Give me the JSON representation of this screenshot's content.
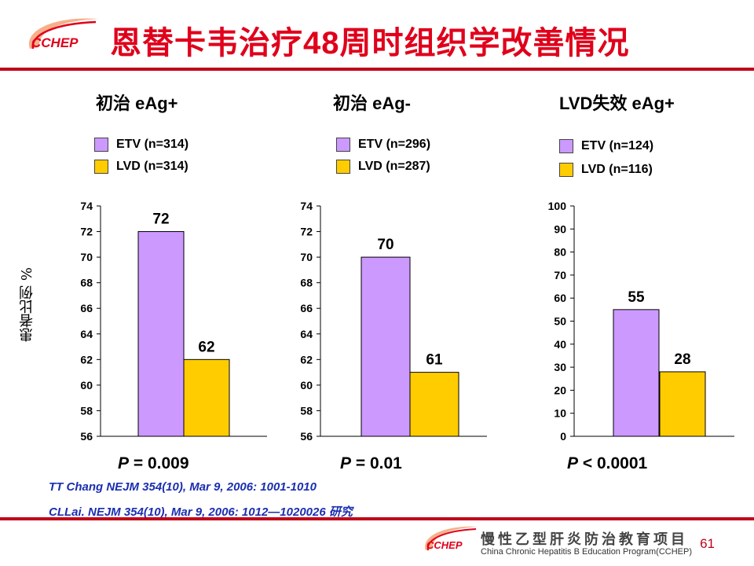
{
  "header": {
    "logo_text": "CCHEP",
    "title": "恩替卡韦治疗48周时组织学改善情况"
  },
  "y_axis_label": "患者比例 %",
  "colors": {
    "etv": "#cc99ff",
    "lvd": "#ffcc00",
    "accent": "#c00018",
    "reference": "#1a2fb0"
  },
  "chart_data": [
    {
      "type": "bar",
      "title": "初治 eAg+",
      "categories": [
        "ETV (n=314)",
        "LVD (n=314)"
      ],
      "series": [
        {
          "name": "",
          "values": [
            72,
            62
          ]
        }
      ],
      "ylim": [
        56,
        74
      ],
      "yticks": [
        56,
        58,
        60,
        62,
        64,
        66,
        68,
        70,
        72,
        74
      ],
      "legend": [
        "ETV (n=314)",
        "LVD (n=314)"
      ],
      "p_label": "P",
      "p_value": " = 0.009"
    },
    {
      "type": "bar",
      "title": "初治 eAg-",
      "categories": [
        "ETV (n=296)",
        "LVD (n=287)"
      ],
      "series": [
        {
          "name": "",
          "values": [
            70,
            61
          ]
        }
      ],
      "ylim": [
        56,
        74
      ],
      "yticks": [
        56,
        58,
        60,
        62,
        64,
        66,
        68,
        70,
        72,
        74
      ],
      "legend": [
        "ETV (n=296)",
        "LVD (n=287)"
      ],
      "p_label": "P",
      "p_value": " = 0.01"
    },
    {
      "type": "bar",
      "title": "LVD失效 eAg+",
      "categories": [
        "ETV (n=124)",
        "LVD (n=116)"
      ],
      "series": [
        {
          "name": "",
          "values": [
            55,
            28
          ]
        }
      ],
      "ylim": [
        0,
        100
      ],
      "yticks": [
        0,
        10,
        20,
        30,
        40,
        50,
        60,
        70,
        80,
        90,
        100
      ],
      "legend": [
        "ETV (n=124)",
        "LVD (n=116)"
      ],
      "p_label": "P",
      "p_value": " < 0.0001"
    }
  ],
  "references": [
    "TT Chang NEJM 354(10), Mar 9, 2006: 1001-1010",
    "CLLai. NEJM 354(10), Mar 9, 2006: 1012—1020026 研究"
  ],
  "footer": {
    "logo_text": "CCHEP",
    "program_cn": "慢性乙型肝炎防治教育项目",
    "program_en": "China Chronic Hepatitis B Education Program(CCHEP)",
    "page_number": "61"
  }
}
